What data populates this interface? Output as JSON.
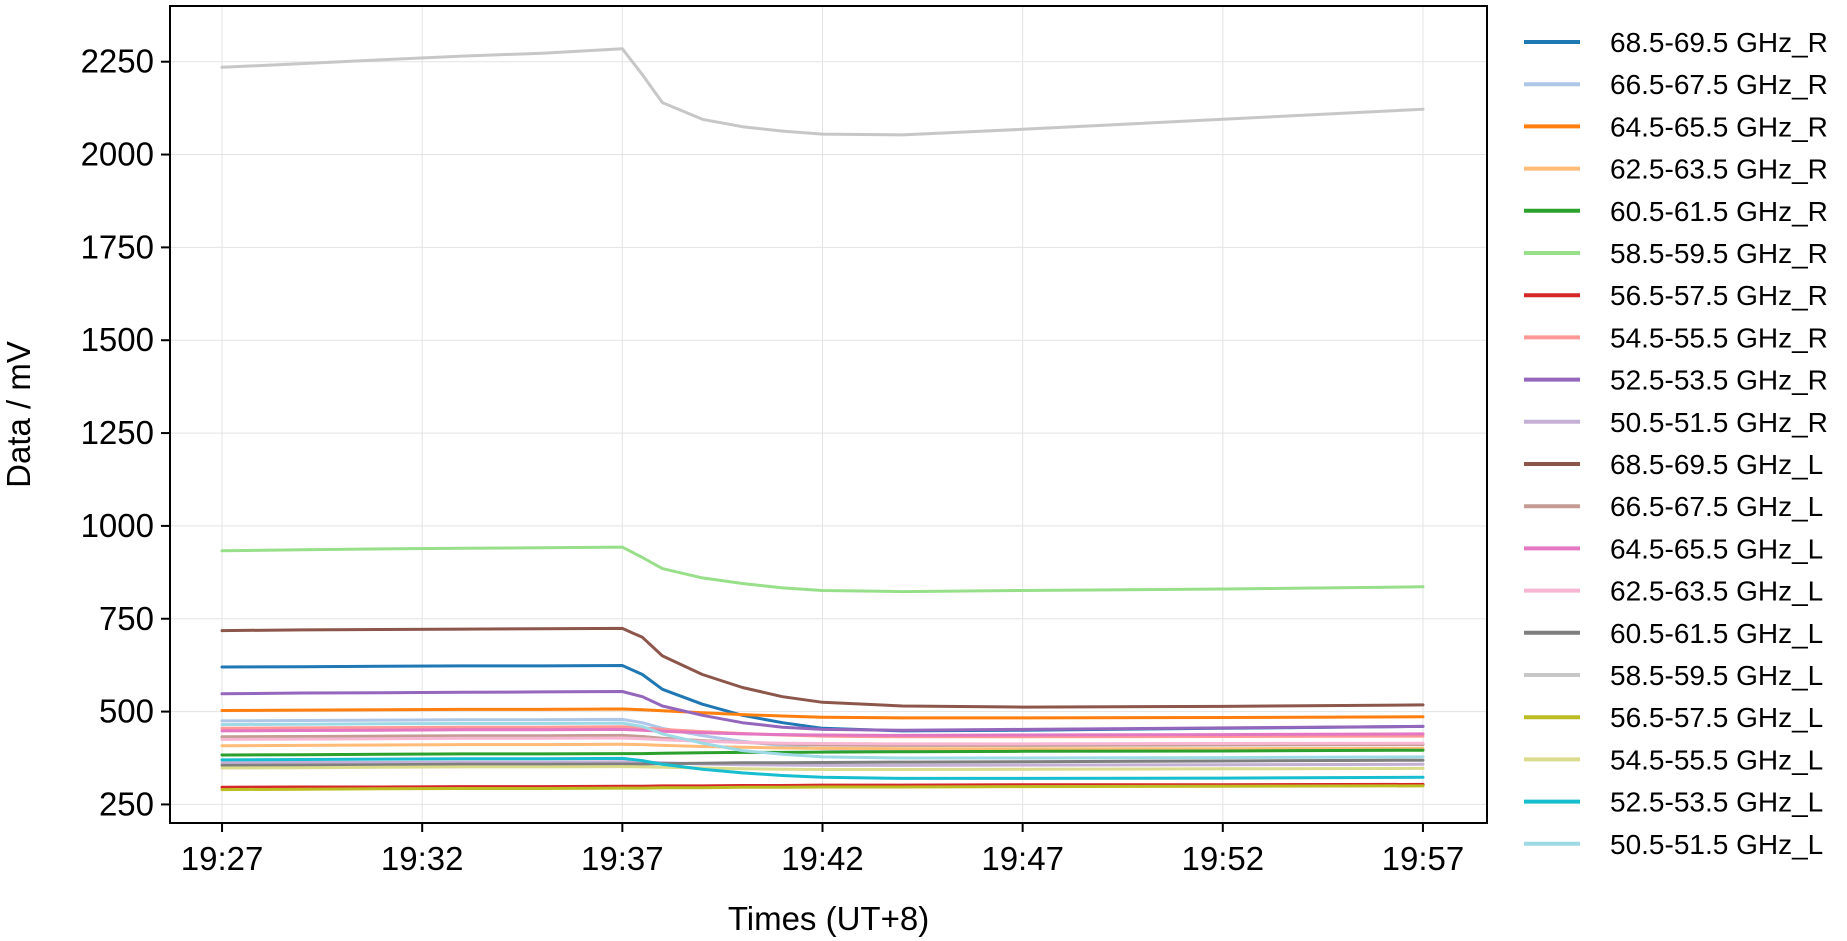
{
  "chart_data": {
    "type": "line",
    "title": "",
    "xlabel": "Times (UT+8)",
    "ylabel": "Data / mV",
    "x_ticks": [
      "19:27",
      "19:32",
      "19:37",
      "19:42",
      "19:47",
      "19:52",
      "19:57"
    ],
    "x_tick_minutes": [
      0,
      5,
      10,
      15,
      20,
      25,
      30
    ],
    "xlim_minutes": [
      -1.3,
      31.6
    ],
    "ylim": [
      200,
      2400
    ],
    "y_ticks": [
      250,
      500,
      750,
      1000,
      1250,
      1500,
      1750,
      2000,
      2250
    ],
    "grid": true,
    "legend_position": "outside-right",
    "x_minutes": [
      0,
      2,
      4,
      6,
      8,
      10,
      10.5,
      11,
      12,
      13,
      14,
      15,
      17,
      20,
      25,
      30
    ],
    "series": [
      {
        "name": "68.5-69.5 GHz_R",
        "color": "#1f77b4",
        "values": [
          620,
          621,
          622,
          623,
          623,
          624,
          600,
          560,
          520,
          490,
          470,
          455,
          448,
          450,
          455,
          460
        ]
      },
      {
        "name": "66.5-67.5 GHz_R",
        "color": "#aec7e8",
        "values": [
          475,
          476,
          477,
          478,
          478,
          479,
          470,
          455,
          435,
          420,
          408,
          400,
          395,
          396,
          398,
          400
        ]
      },
      {
        "name": "64.5-65.5 GHz_R",
        "color": "#ff7f0e",
        "values": [
          503,
          504,
          505,
          506,
          506,
          507,
          505,
          502,
          497,
          492,
          488,
          485,
          483,
          483,
          484,
          486
        ]
      },
      {
        "name": "62.5-63.5 GHz_R",
        "color": "#ffbb78",
        "values": [
          408,
          409,
          410,
          411,
          411,
          412,
          411,
          409,
          406,
          404,
          402,
          401,
          400,
          400,
          400,
          401
        ]
      },
      {
        "name": "60.5-61.5 GHz_R",
        "color": "#2ca02c",
        "values": [
          383,
          384,
          385,
          386,
          386,
          387,
          387,
          388,
          389,
          390,
          390,
          391,
          392,
          393,
          394,
          396
        ]
      },
      {
        "name": "58.5-59.5 GHz_R",
        "color": "#98df8a",
        "values": [
          933,
          936,
          938,
          940,
          941,
          943,
          915,
          885,
          860,
          845,
          833,
          826,
          823,
          826,
          830,
          836
        ]
      },
      {
        "name": "56.5-57.5 GHz_R",
        "color": "#d62728",
        "values": [
          296,
          297,
          297,
          298,
          298,
          299,
          299,
          300,
          300,
          301,
          301,
          302,
          302,
          303,
          303,
          304
        ]
      },
      {
        "name": "54.5-55.5 GHz_R",
        "color": "#ff9896",
        "values": [
          455,
          456,
          457,
          458,
          458,
          459,
          456,
          452,
          446,
          441,
          437,
          434,
          432,
          432,
          433,
          434
        ]
      },
      {
        "name": "52.5-53.5 GHz_R",
        "color": "#9467bd",
        "values": [
          548,
          550,
          551,
          552,
          553,
          554,
          540,
          515,
          490,
          470,
          458,
          452,
          450,
          452,
          456,
          460
        ]
      },
      {
        "name": "50.5-51.5 GHz_R",
        "color": "#c5b0d5",
        "values": [
          362,
          363,
          363,
          364,
          364,
          365,
          364,
          362,
          359,
          357,
          356,
          355,
          355,
          356,
          357,
          358
        ]
      },
      {
        "name": "68.5-69.5 GHz_L",
        "color": "#8c564b",
        "values": [
          718,
          720,
          721,
          722,
          723,
          724,
          700,
          650,
          600,
          565,
          540,
          525,
          515,
          512,
          514,
          518
        ]
      },
      {
        "name": "66.5-67.5 GHz_L",
        "color": "#c49c94",
        "values": [
          432,
          433,
          434,
          435,
          435,
          436,
          433,
          428,
          422,
          417,
          413,
          410,
          409,
          409,
          410,
          411
        ]
      },
      {
        "name": "64.5-65.5 GHz_L",
        "color": "#e377c2",
        "values": [
          448,
          449,
          450,
          451,
          451,
          452,
          450,
          447,
          443,
          440,
          438,
          437,
          436,
          437,
          438,
          440
        ]
      },
      {
        "name": "62.5-63.5 GHz_L",
        "color": "#f7b6d2",
        "values": [
          425,
          426,
          427,
          428,
          428,
          429,
          427,
          424,
          420,
          417,
          415,
          414,
          413,
          413,
          414,
          415
        ]
      },
      {
        "name": "60.5-61.5 GHz_L",
        "color": "#7f7f7f",
        "values": [
          355,
          356,
          357,
          358,
          358,
          359,
          359,
          360,
          361,
          362,
          362,
          363,
          364,
          365,
          367,
          369
        ]
      },
      {
        "name": "58.5-59.5 GHz_L",
        "color": "#c7c7c7",
        "values": [
          2235,
          2245,
          2255,
          2265,
          2273,
          2285,
          2215,
          2140,
          2095,
          2075,
          2063,
          2055,
          2053,
          2068,
          2095,
          2122
        ]
      },
      {
        "name": "56.5-57.5 GHz_L",
        "color": "#bcbd22",
        "values": [
          290,
          291,
          292,
          293,
          293,
          294,
          294,
          295,
          295,
          296,
          296,
          297,
          297,
          298,
          299,
          300
        ]
      },
      {
        "name": "54.5-55.5 GHz_L",
        "color": "#dbdb8d",
        "values": [
          348,
          349,
          350,
          351,
          351,
          352,
          351,
          350,
          348,
          346,
          345,
          344,
          344,
          345,
          346,
          347
        ]
      },
      {
        "name": "52.5-53.5 GHz_L",
        "color": "#17becf",
        "values": [
          370,
          371,
          372,
          373,
          373,
          374,
          368,
          358,
          345,
          335,
          328,
          323,
          320,
          320,
          321,
          323
        ]
      },
      {
        "name": "50.5-51.5 GHz_L",
        "color": "#9edae5",
        "values": [
          465,
          466,
          467,
          468,
          468,
          469,
          460,
          440,
          415,
          395,
          385,
          378,
          375,
          375,
          376,
          378
        ]
      }
    ]
  }
}
